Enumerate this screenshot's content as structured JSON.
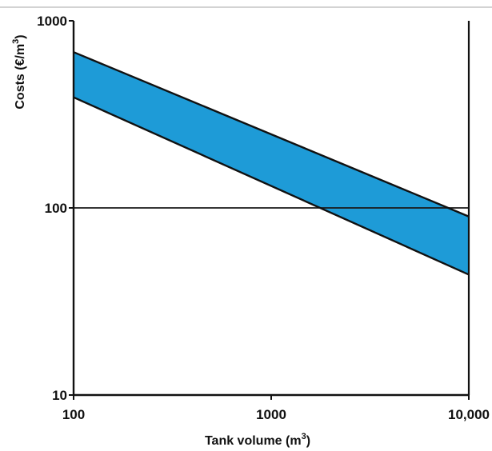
{
  "chart_data": {
    "type": "area",
    "x_scale": "log",
    "y_scale": "log",
    "xlim": [
      100,
      10000
    ],
    "ylim": [
      10,
      1000
    ],
    "xlabel": {
      "text": "Tank volume (m",
      "sup": "3",
      "suffix": ")"
    },
    "ylabel": {
      "text": "Costs (€/m",
      "sup": "3",
      "suffix": ")"
    },
    "x_ticks": [
      {
        "value": 100,
        "label": "100"
      },
      {
        "value": 1000,
        "label": "1000"
      },
      {
        "value": 10000,
        "label": "10,000"
      }
    ],
    "y_ticks": [
      {
        "value": 10,
        "label": "10"
      },
      {
        "value": 100,
        "label": "100"
      },
      {
        "value": 1000,
        "label": "1000"
      }
    ],
    "reference_line": {
      "y": 100
    },
    "band": {
      "upper": {
        "x": [
          100,
          10000
        ],
        "y": [
          680,
          90
        ]
      },
      "lower": {
        "x": [
          100,
          10000
        ],
        "y": [
          390,
          44
        ]
      },
      "fill": "#1e9bd7"
    },
    "grid": false
  }
}
